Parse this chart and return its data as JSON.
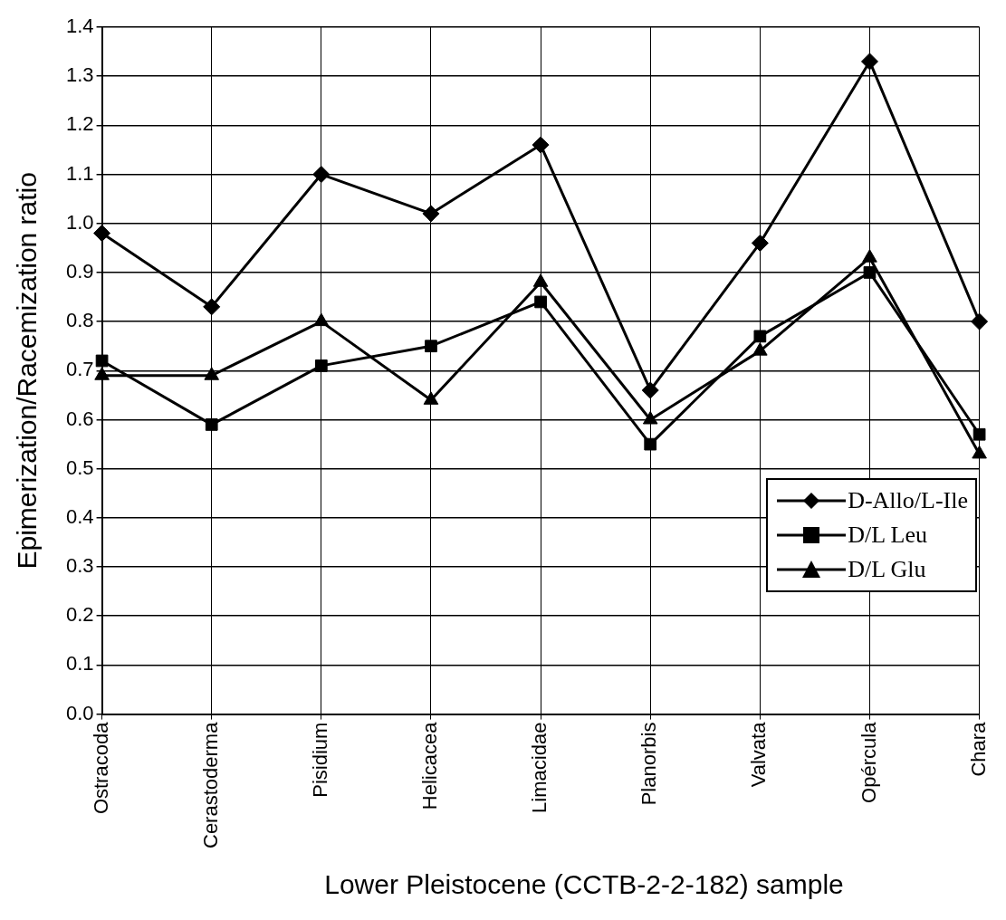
{
  "chart_data": {
    "type": "line",
    "xlabel": "Lower Pleistocene (CCTB-2-2-182) sample",
    "ylabel": "Epimerization/Racemization ratio",
    "categories": [
      "Ostracoda",
      "Cerastoderma",
      "Pisidium",
      "Helicacea",
      "Limacidae",
      "Planorbis",
      "Valvata",
      "Opércula",
      "Chara"
    ],
    "series": [
      {
        "name": "D-Allo/L-Ile",
        "color": "#000000",
        "marker": "diamond",
        "values": [
          0.98,
          0.83,
          1.1,
          1.02,
          1.16,
          0.66,
          0.96,
          1.33,
          0.8
        ]
      },
      {
        "name": "D/L Leu",
        "color": "#000000",
        "marker": "square",
        "values": [
          0.72,
          0.59,
          0.71,
          0.75,
          0.84,
          0.55,
          0.77,
          0.9,
          0.57
        ]
      },
      {
        "name": "D/L Glu",
        "color": "#000000",
        "marker": "triangle",
        "values": [
          0.69,
          0.69,
          0.8,
          0.64,
          0.88,
          0.6,
          0.74,
          0.93,
          0.53
        ]
      }
    ],
    "ylim": [
      0,
      1.4
    ],
    "yticks": [
      {
        "value": 0,
        "label": "0.0"
      },
      0.1,
      0.2,
      0.3,
      0.4,
      0.5,
      0.6,
      0.7,
      0.8,
      0.9,
      {
        "value": 1,
        "label": "1.0"
      },
      1.1,
      1.2,
      1.3,
      1.4
    ],
    "grid": true,
    "legend": "bottom right",
    "line_style": "solid"
  }
}
